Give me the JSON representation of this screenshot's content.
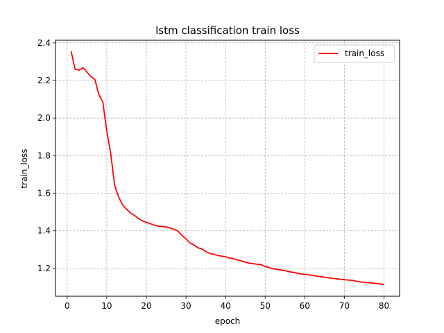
{
  "chart_data": {
    "type": "line",
    "title": "lstm classification train loss",
    "xlabel": "epoch",
    "ylabel": "train_loss",
    "xlim": [
      -2.95,
      83.95
    ],
    "ylim": [
      1.052,
      2.414
    ],
    "xticks": [
      0,
      10,
      20,
      30,
      40,
      50,
      60,
      70,
      80
    ],
    "yticks": [
      1.2,
      1.4,
      1.6,
      1.8,
      2.0,
      2.2,
      2.4
    ],
    "ytick_labels": [
      "1.2",
      "1.4",
      "1.6",
      "1.8",
      "2.0",
      "2.2",
      "2.4"
    ],
    "grid": true,
    "grid_style": "dashed",
    "legend_position": "top-right",
    "series": [
      {
        "name": "train_loss",
        "color": "#ff0000",
        "x": [
          1,
          2,
          3,
          4,
          5,
          6,
          7,
          8,
          9,
          10,
          11,
          12,
          13,
          14,
          15,
          16,
          17,
          18,
          19,
          20,
          21,
          22,
          23,
          24,
          25,
          26,
          27,
          28,
          29,
          30,
          31,
          32,
          33,
          34,
          35,
          36,
          37,
          38,
          39,
          40,
          41,
          42,
          43,
          44,
          45,
          46,
          47,
          48,
          49,
          50,
          51,
          52,
          53,
          54,
          55,
          56,
          57,
          58,
          59,
          60,
          61,
          62,
          63,
          64,
          65,
          66,
          67,
          68,
          69,
          70,
          71,
          72,
          73,
          74,
          75,
          76,
          77,
          78,
          79,
          80
        ],
        "y": [
          2.355,
          2.26,
          2.255,
          2.268,
          2.245,
          2.22,
          2.205,
          2.125,
          2.085,
          1.93,
          1.81,
          1.64,
          1.58,
          1.537,
          1.515,
          1.495,
          1.482,
          1.465,
          1.453,
          1.445,
          1.438,
          1.43,
          1.425,
          1.422,
          1.421,
          1.415,
          1.408,
          1.398,
          1.375,
          1.358,
          1.335,
          1.325,
          1.31,
          1.304,
          1.29,
          1.28,
          1.275,
          1.27,
          1.265,
          1.262,
          1.255,
          1.252,
          1.245,
          1.24,
          1.233,
          1.228,
          1.225,
          1.222,
          1.22,
          1.21,
          1.205,
          1.198,
          1.195,
          1.192,
          1.188,
          1.183,
          1.179,
          1.175,
          1.171,
          1.168,
          1.166,
          1.163,
          1.159,
          1.156,
          1.153,
          1.15,
          1.147,
          1.145,
          1.142,
          1.14,
          1.138,
          1.137,
          1.132,
          1.128,
          1.126,
          1.124,
          1.122,
          1.12,
          1.118,
          1.113
        ]
      }
    ]
  }
}
